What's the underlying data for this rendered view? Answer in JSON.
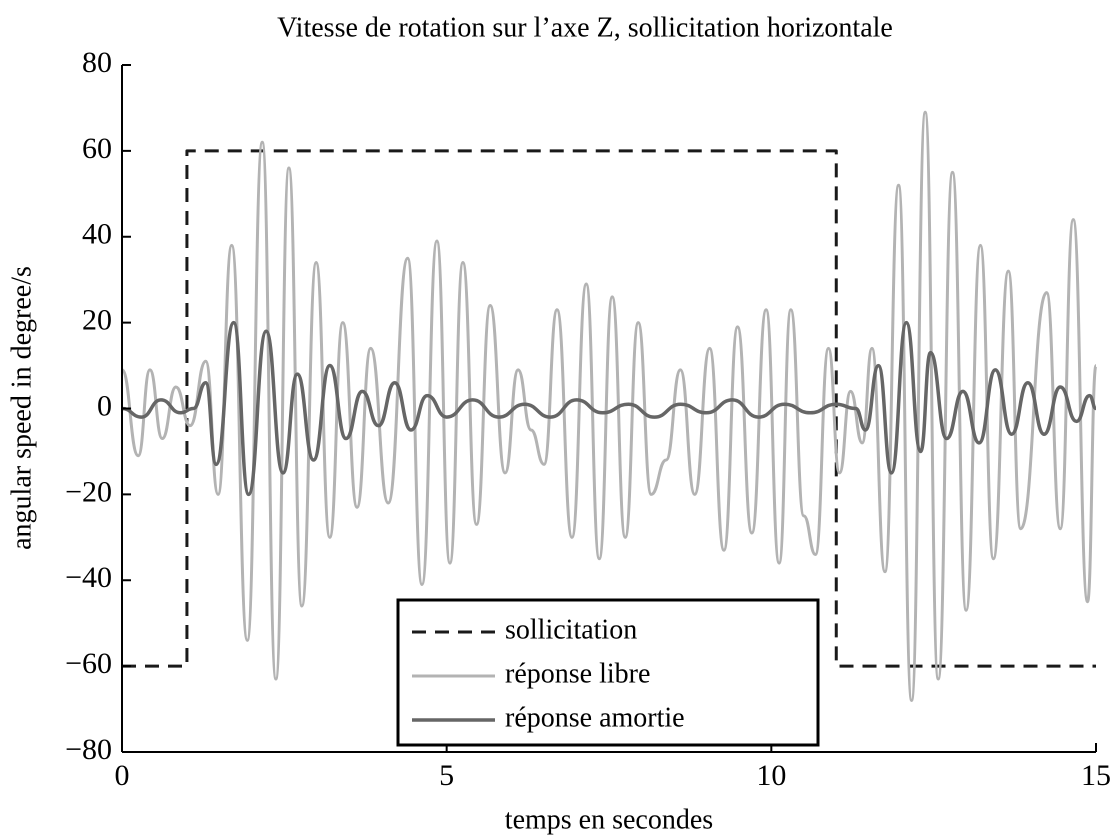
{
  "chart_data": {
    "type": "line",
    "title": "Vitesse de rotation sur l’axe Z, sollicitation horizontale",
    "xlabel": "temps en secondes",
    "ylabel": "angular speed in degree/s",
    "xlim": [
      0,
      15
    ],
    "ylim": [
      -80,
      80
    ],
    "xticks": [
      0,
      5,
      10,
      15
    ],
    "yticks": [
      {
        "value": -80,
        "label": "−80"
      },
      {
        "value": -60,
        "label": "−60"
      },
      {
        "value": -40,
        "label": "−40"
      },
      {
        "value": -20,
        "label": "−20"
      },
      0,
      20,
      40,
      60,
      80
    ],
    "legend": "lower center",
    "series": [
      {
        "name": "sollicitation",
        "color": "#1a1a1a",
        "style": "dashed",
        "x": [
          0,
          1,
          1,
          11,
          11,
          15
        ],
        "values": [
          -60,
          -60,
          60,
          60,
          -60,
          -60
        ]
      },
      {
        "name": "réponse libre",
        "color": "#b3b3b3",
        "style": "solid",
        "x": [
          0,
          0.25,
          0.43,
          0.62,
          0.83,
          1.05,
          1.29,
          1.48,
          1.69,
          1.93,
          2.16,
          2.37,
          2.57,
          2.77,
          2.99,
          3.2,
          3.4,
          3.62,
          3.83,
          4.1,
          4.4,
          4.62,
          4.85,
          5.05,
          5.25,
          5.46,
          5.67,
          5.9,
          6.1,
          6.3,
          6.5,
          6.7,
          6.93,
          7.15,
          7.35,
          7.55,
          7.75,
          7.95,
          8.15,
          8.38,
          8.6,
          8.82,
          9.05,
          9.27,
          9.48,
          9.7,
          9.92,
          10.12,
          10.3,
          10.5,
          10.68,
          10.88,
          11.05,
          11.22,
          11.4,
          11.55,
          11.75,
          11.96,
          12.16,
          12.37,
          12.57,
          12.79,
          13.0,
          13.22,
          13.42,
          13.65,
          13.84,
          14.24,
          14.45,
          14.65,
          14.87,
          15.0
        ],
        "values": [
          9,
          -11,
          9,
          -7,
          5,
          -4,
          11,
          -20,
          38,
          -54,
          62,
          -63,
          56,
          -46,
          34,
          -30,
          20,
          -23,
          14,
          -22,
          35,
          -41,
          39,
          -36,
          34,
          -27,
          24,
          -15,
          9,
          -5,
          -13,
          23,
          -30,
          29,
          -35,
          26,
          -30,
          20,
          -20,
          -12,
          9,
          -20,
          14,
          -33,
          19,
          -29,
          23,
          -36,
          23,
          -25,
          -34,
          14,
          -15,
          4,
          -8,
          14,
          -38,
          52,
          -68,
          69,
          -63,
          55,
          -47,
          38,
          -35,
          32,
          -28,
          27,
          -28,
          44,
          -45,
          10
        ]
      },
      {
        "name": "réponse amortie",
        "color": "#666666",
        "style": "solid",
        "x": [
          0,
          0.3,
          0.6,
          0.9,
          1.1,
          1.29,
          1.45,
          1.72,
          1.95,
          2.22,
          2.48,
          2.7,
          2.95,
          3.2,
          3.45,
          3.7,
          3.95,
          4.2,
          4.45,
          4.7,
          5.0,
          5.4,
          5.8,
          6.2,
          6.6,
          7.0,
          7.4,
          7.8,
          8.2,
          8.6,
          9.0,
          9.4,
          9.8,
          10.2,
          10.6,
          11.0,
          11.3,
          11.45,
          11.65,
          11.85,
          12.08,
          12.3,
          12.45,
          12.7,
          12.95,
          13.2,
          13.45,
          13.7,
          13.95,
          14.2,
          14.45,
          14.7,
          14.9,
          15.0
        ],
        "values": [
          0,
          -2,
          2,
          -1,
          0,
          6,
          -13,
          20,
          -20,
          18,
          -15,
          8,
          -12,
          10,
          -7,
          4,
          -4,
          6,
          -5,
          3,
          -2,
          2,
          -2,
          1,
          -2,
          2,
          -1,
          1,
          -2,
          1,
          -1,
          2,
          -2,
          1,
          -1,
          1,
          0,
          -5,
          10,
          -15,
          20,
          -10,
          13,
          -7,
          4,
          -8,
          9,
          -6,
          6,
          -6,
          5,
          -3,
          3,
          0
        ]
      }
    ]
  }
}
